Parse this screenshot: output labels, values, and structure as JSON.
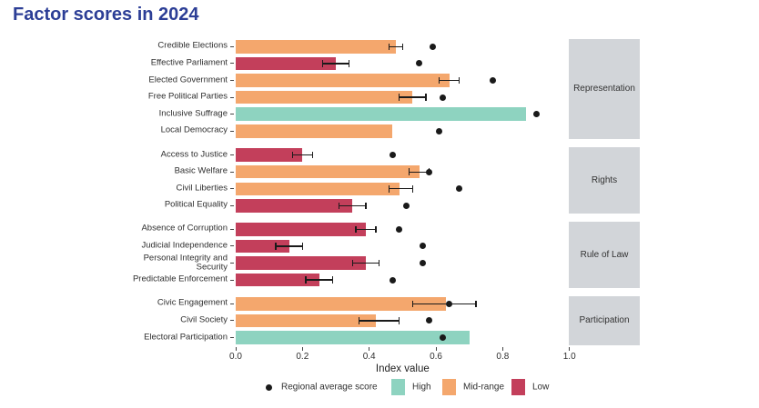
{
  "title": "Factor scores in 2024",
  "colors": {
    "high": "#8ed3c0",
    "mid": "#f4a76d",
    "low": "#c33f5b",
    "strip_bg": "#d2d5d9",
    "title_text": "#2c3e96",
    "dot": "#1a1a1a"
  },
  "chart_data": {
    "type": "bar",
    "orientation": "horizontal",
    "title": "Factor scores in 2024",
    "xlabel": "Index value",
    "xlim": [
      0,
      1
    ],
    "grid": false,
    "x_ticks": [
      {
        "label": "0.0",
        "value": 0.0
      },
      {
        "label": "0.2",
        "value": 0.2
      },
      {
        "label": "0.4",
        "value": 0.4
      },
      {
        "label": "0.6",
        "value": 0.6
      },
      {
        "label": "0.8",
        "value": 0.8
      },
      {
        "label": "1.0",
        "value": 1.0
      }
    ],
    "legend": {
      "dot_label": "Regional average score",
      "high_label": "High",
      "mid_label": "Mid-range",
      "low_label": "Low"
    },
    "sections": [
      {
        "name": "Representation",
        "factors": [
          {
            "label": "Credible Elections",
            "level": "mid",
            "value": 0.48,
            "ci": [
              0.46,
              0.5
            ],
            "regional_avg": 0.59
          },
          {
            "label": "Effective Parliament",
            "level": "low",
            "value": 0.3,
            "ci": [
              0.26,
              0.34
            ],
            "regional_avg": 0.55
          },
          {
            "label": "Elected Government",
            "level": "mid",
            "value": 0.64,
            "ci": [
              0.61,
              0.67
            ],
            "regional_avg": 0.77
          },
          {
            "label": "Free Political Parties",
            "level": "mid",
            "value": 0.53,
            "ci": [
              0.49,
              0.57
            ],
            "regional_avg": 0.62
          },
          {
            "label": "Inclusive Suffrage",
            "level": "high",
            "value": 0.87,
            "ci": null,
            "regional_avg": 0.9
          },
          {
            "label": "Local Democracy",
            "level": "mid",
            "value": 0.47,
            "ci": null,
            "regional_avg": 0.61
          }
        ]
      },
      {
        "name": "Rights",
        "factors": [
          {
            "label": "Access to Justice",
            "level": "low",
            "value": 0.2,
            "ci": [
              0.17,
              0.23
            ],
            "regional_avg": 0.47
          },
          {
            "label": "Basic Welfare",
            "level": "mid",
            "value": 0.55,
            "ci": [
              0.52,
              0.58
            ],
            "regional_avg": 0.58
          },
          {
            "label": "Civil Liberties",
            "level": "mid",
            "value": 0.49,
            "ci": [
              0.46,
              0.53
            ],
            "regional_avg": 0.67
          },
          {
            "label": "Political Equality",
            "level": "low",
            "value": 0.35,
            "ci": [
              0.31,
              0.39
            ],
            "regional_avg": 0.51
          }
        ]
      },
      {
        "name": "Rule of Law",
        "factors": [
          {
            "label": "Absence of Corruption",
            "level": "low",
            "value": 0.39,
            "ci": [
              0.36,
              0.42
            ],
            "regional_avg": 0.49
          },
          {
            "label": "Judicial Independence",
            "level": "low",
            "value": 0.16,
            "ci": [
              0.12,
              0.2
            ],
            "regional_avg": 0.56
          },
          {
            "label": "Personal Integrity and Security",
            "level": "low",
            "value": 0.39,
            "ci": [
              0.35,
              0.43
            ],
            "regional_avg": 0.56
          },
          {
            "label": "Predictable Enforcement",
            "level": "low",
            "value": 0.25,
            "ci": [
              0.21,
              0.29
            ],
            "regional_avg": 0.47
          }
        ]
      },
      {
        "name": "Participation",
        "factors": [
          {
            "label": "Civic Engagement",
            "level": "mid",
            "value": 0.63,
            "ci": [
              0.53,
              0.72
            ],
            "regional_avg": 0.64
          },
          {
            "label": "Civil Society",
            "level": "mid",
            "value": 0.42,
            "ci": [
              0.37,
              0.49
            ],
            "regional_avg": 0.58
          },
          {
            "label": "Electoral Participation",
            "level": "high",
            "value": 0.7,
            "ci": null,
            "regional_avg": 0.62
          }
        ]
      }
    ]
  }
}
